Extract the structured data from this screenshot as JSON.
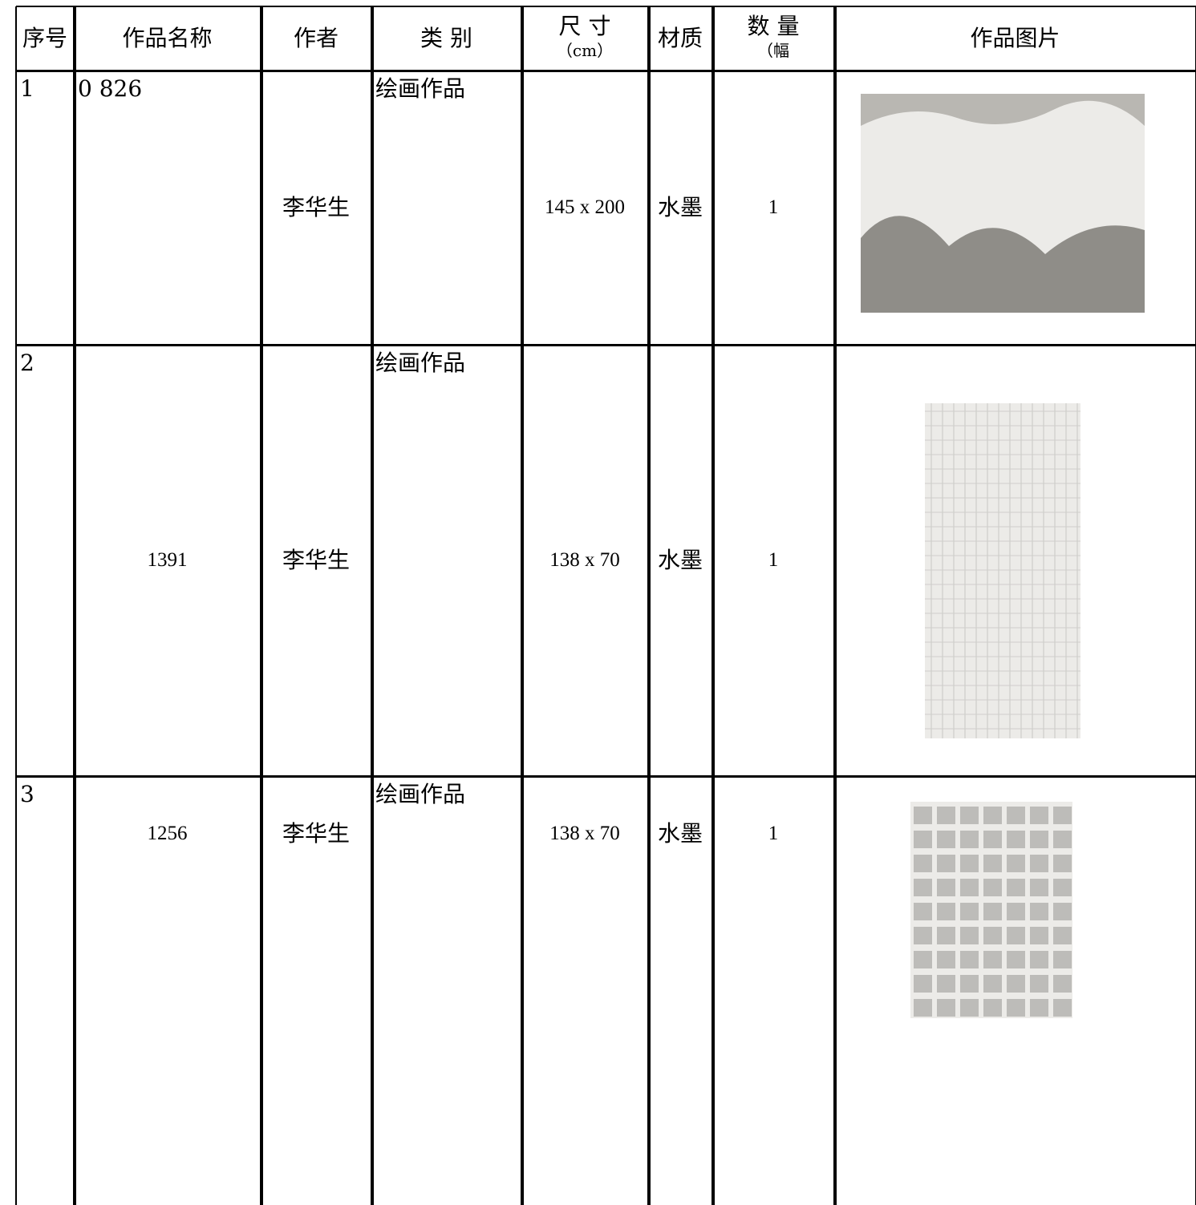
{
  "table": {
    "header": [
      "序号",
      "作品名称",
      "作者",
      "类 别",
      "尺 寸",
      "材质",
      "数 量",
      "作品图片"
    ],
    "size_unit": "（cm）",
    "count_unit": "（幅",
    "rows": [
      [
        "1",
        "0 826",
        "李华生",
        "绘画作品",
        "145 x 200",
        "水墨",
        "1"
      ],
      [
        "2",
        "1391",
        "李华生",
        "绘画作品",
        "138 x 70",
        "水墨",
        "1"
      ],
      [
        "3",
        "1256",
        "李华生",
        "绘画作品",
        "138 x 70",
        "水墨",
        "1"
      ]
    ]
  }
}
